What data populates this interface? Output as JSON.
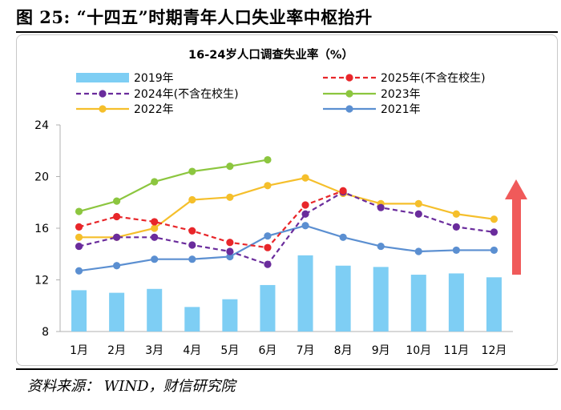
{
  "figure": {
    "title": "图 25: “十四五”时期青年人口失业率中枢抬升",
    "source": "资料来源：  WIND，财信研究院"
  },
  "colors": {
    "bar": "#7ecef4",
    "s2025": "#e8262a",
    "s2024": "#6a2c9c",
    "s2023": "#8cc63f",
    "s2022": "#f5bf2b",
    "s2021": "#5b8fd1",
    "arrow": "#f05a5a"
  },
  "chart_data": {
    "type": "bar+line",
    "title": "16-24岁人口调查失业率（%）",
    "categories": [
      "1月",
      "2月",
      "3月",
      "4月",
      "5月",
      "6月",
      "7月",
      "8月",
      "9月",
      "10月",
      "11月",
      "12月"
    ],
    "ylim": [
      8,
      24
    ],
    "yticks": [
      8,
      12,
      16,
      20,
      24
    ],
    "bar_series": {
      "name": "2019年",
      "values": [
        11.2,
        11.0,
        11.3,
        9.9,
        10.5,
        11.6,
        13.9,
        13.1,
        13.0,
        12.4,
        12.5,
        12.2
      ]
    },
    "line_series": [
      {
        "key": "s2025",
        "name": "2025年(不含在校生)",
        "dash": true,
        "values": [
          16.1,
          16.9,
          16.5,
          15.8,
          14.9,
          14.5,
          17.8,
          18.9,
          null,
          null,
          null,
          null
        ]
      },
      {
        "key": "s2024",
        "name": "2024年(不含在校生)",
        "dash": true,
        "values": [
          14.6,
          15.3,
          15.3,
          14.7,
          14.2,
          13.2,
          17.1,
          18.8,
          17.6,
          17.1,
          16.1,
          15.7
        ]
      },
      {
        "key": "s2023",
        "name": "2023年",
        "dash": false,
        "values": [
          17.3,
          18.1,
          19.6,
          20.4,
          20.8,
          21.3,
          null,
          null,
          null,
          null,
          null,
          null
        ]
      },
      {
        "key": "s2022",
        "name": "2022年",
        "dash": false,
        "values": [
          15.3,
          15.3,
          16.0,
          18.2,
          18.4,
          19.3,
          19.9,
          18.7,
          17.9,
          17.9,
          17.1,
          16.7
        ]
      },
      {
        "key": "s2021",
        "name": "2021年",
        "dash": false,
        "values": [
          12.7,
          13.1,
          13.6,
          13.6,
          13.8,
          15.4,
          16.2,
          15.3,
          14.6,
          14.2,
          14.3,
          14.3
        ]
      }
    ],
    "legend": {
      "placement": "top",
      "order": [
        "2019年",
        "2025年(不含在校生)",
        "2024年(不含在校生)",
        "2023年",
        "2022年",
        "2021年"
      ]
    },
    "annotation": "upward-arrow"
  }
}
